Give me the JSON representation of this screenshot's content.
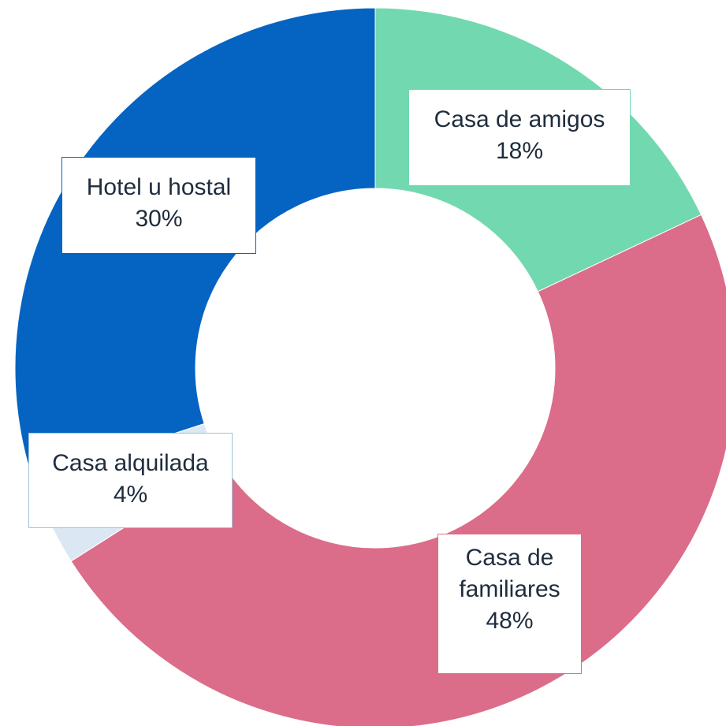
{
  "chart_data": {
    "type": "donut",
    "categories": [
      "Casa de amigos",
      "Casa de familiares",
      "Casa alquilada",
      "Hotel u hostal"
    ],
    "values": [
      18,
      48,
      4,
      30
    ],
    "value_labels": [
      "18%",
      "48%",
      "4%",
      "30%"
    ],
    "colors": [
      "#72d8b0",
      "#db6d8a",
      "#dbe8f3",
      "#0563c1"
    ]
  }
}
